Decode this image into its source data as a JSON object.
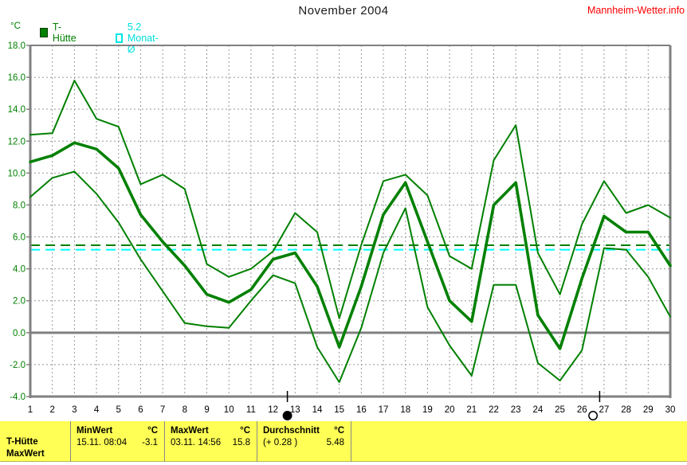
{
  "header": {
    "title": "November 2004",
    "brand": "Mannheim-Wetter.info"
  },
  "y_axis": {
    "unit": "°C",
    "tick_labels": [
      "18.0",
      "16.0",
      "14.0",
      "12.0",
      "10.0",
      "8.0",
      "6.0",
      "4.0",
      "2.0",
      "0.0",
      "-2.0",
      "-4.0"
    ]
  },
  "legend": [
    {
      "label": "T-Hütte",
      "swatch": "filled-square",
      "color": "#008000"
    },
    {
      "label": "5.2 Monat-Ø",
      "swatch": "open-square",
      "color": "#00ffff"
    }
  ],
  "chart_data": {
    "type": "line",
    "title": "November 2004",
    "xlabel": "",
    "ylabel": "°C",
    "ylim": [
      -4,
      18
    ],
    "yticks": [
      18,
      16,
      14,
      12,
      10,
      8,
      6,
      4,
      2,
      0,
      -2,
      -4
    ],
    "x_ticks": [
      1,
      2,
      3,
      4,
      5,
      6,
      7,
      8,
      9,
      10,
      11,
      12,
      13,
      14,
      15,
      16,
      17,
      18,
      19,
      20,
      21,
      22,
      23,
      24,
      25,
      26,
      27,
      28,
      29,
      30
    ],
    "grid": "dashed",
    "legend_position": "top-left",
    "series": [
      {
        "name": "daily-max",
        "color": "#008000",
        "width": 2,
        "values": [
          12.4,
          12.5,
          15.8,
          13.4,
          12.9,
          9.3,
          9.9,
          9.0,
          4.3,
          3.5,
          4.0,
          5.1,
          7.5,
          6.3,
          0.9,
          5.5,
          9.5,
          9.9,
          8.6,
          4.8,
          4.0,
          10.8,
          13.0,
          5.0,
          2.4,
          6.8,
          9.5,
          7.5,
          8.0,
          7.2
        ]
      },
      {
        "name": "t-huette-mean",
        "color": "#008000",
        "width": 3.6,
        "values": [
          10.7,
          11.1,
          11.9,
          11.5,
          10.3,
          7.4,
          5.7,
          4.2,
          2.4,
          1.9,
          2.7,
          4.6,
          5.0,
          2.9,
          -0.9,
          2.9,
          7.4,
          9.4,
          5.7,
          2.0,
          0.7,
          8.0,
          9.4,
          1.1,
          -1.0,
          3.4,
          7.3,
          6.3,
          6.3,
          4.2
        ]
      },
      {
        "name": "daily-min",
        "color": "#008000",
        "width": 2,
        "values": [
          8.5,
          9.7,
          10.1,
          8.7,
          6.9,
          4.6,
          2.6,
          0.6,
          0.4,
          0.3,
          2.0,
          3.6,
          3.1,
          -0.9,
          -3.1,
          0.3,
          5.0,
          7.8,
          1.6,
          -0.8,
          -2.7,
          3.0,
          3.0,
          -1.9,
          -3.0,
          -1.1,
          5.3,
          5.2,
          3.5,
          1.0
        ]
      }
    ],
    "reference_lines": [
      {
        "name": "monat-mittel",
        "label": "5.2 Monat-Ø",
        "value": 5.2,
        "color": "#00ffff",
        "style": "dashed"
      },
      {
        "name": "durchschnitt",
        "label": "Durchschnitt 5.48",
        "value": 5.48,
        "color": "#008000",
        "style": "dashed"
      }
    ],
    "moon_markers": [
      {
        "phase": "new",
        "day": 12.65,
        "tick_day": 12.65
      },
      {
        "phase": "full",
        "day": 26.5,
        "tick_day": 26.8
      }
    ]
  },
  "footer": {
    "row_labels": [
      "T-Hütte",
      "MaxWert"
    ],
    "columns": [
      {
        "header": "MinWert",
        "unit": "°C",
        "date": "15.11.  08:04",
        "value": "-3.1"
      },
      {
        "header": "MaxWert",
        "unit": "°C",
        "date": "03.11.  14:56",
        "value": "15.8"
      },
      {
        "header": "Durchschnitt",
        "unit": "°C",
        "date": "(+ 0.28 )",
        "value": "5.48"
      }
    ]
  },
  "colors": {
    "line_green": "#008000",
    "cyan": "#00ffff",
    "brand_red": "#ff0000",
    "grid_gray": "#999999",
    "frame_gray": "#808080",
    "panel_yellow": "#ffff55"
  }
}
